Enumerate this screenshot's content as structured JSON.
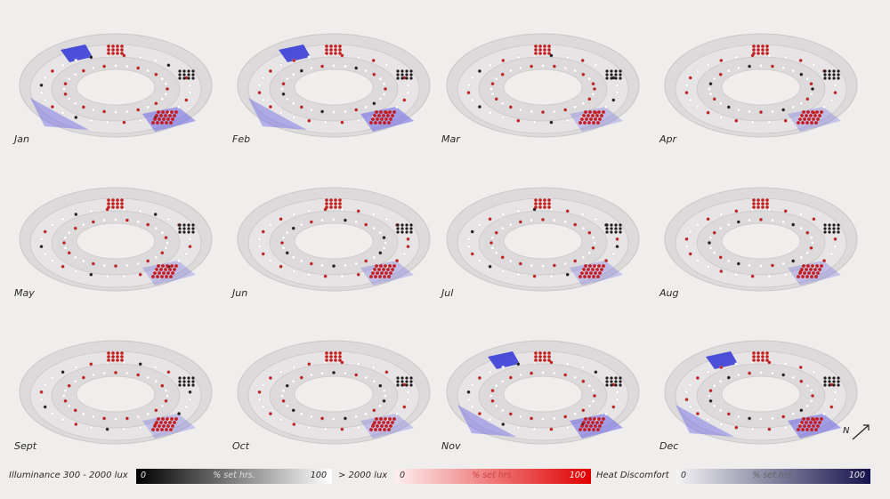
{
  "months": [
    "Jan",
    "Feb",
    "Mar",
    "Apr",
    "May",
    "Jun",
    "Jul",
    "Aug",
    "Sept",
    "Oct",
    "Nov",
    "Dec"
  ],
  "legend": {
    "illuminance": {
      "label": "Illuminance 300 - 2000 lux",
      "min": "0",
      "mid": "% set hrs.",
      "max": "100",
      "color_from": "#000000",
      "color_to": "#ffffff"
    },
    "over": {
      "label": "> 2000 lux",
      "min": "0",
      "mid": "% set hrs.",
      "max": "100",
      "color_from": "#fdeeee",
      "color_to": "#e00000"
    },
    "heat": {
      "label": "Heat Discomfort",
      "min": "0",
      "mid": "% set hrs.",
      "max": "100",
      "color_from": "#f4f4f4",
      "color_to": "#15124a"
    }
  },
  "colors": {
    "ring": "#dcdada",
    "ring_edge": "#c9c7c7",
    "heat": "#6a64e6",
    "red_dot": "#c61c1c",
    "black_dot": "#1e1e1e"
  }
}
